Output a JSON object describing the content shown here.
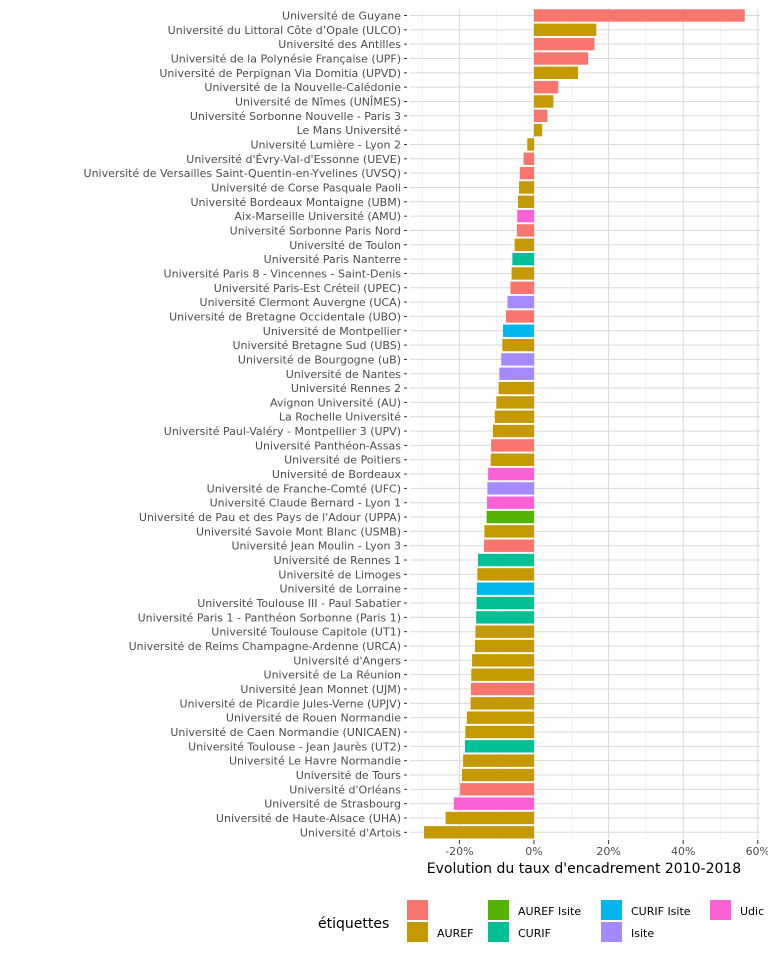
{
  "chart_data": {
    "type": "bar",
    "orientation": "horizontal",
    "xlabel": "Evolution du taux d'encadrement 2010-2018",
    "xlim": [
      -0.3,
      0.6
    ],
    "xticks": [
      "-20%",
      "0%",
      "20%",
      "40%",
      "60%"
    ],
    "xtick_values": [
      -0.2,
      0.0,
      0.2,
      0.4,
      0.6
    ],
    "grid": true,
    "legend_position": "bottom",
    "legend_title": "étiquettes",
    "colors": {
      "": "#F8766D",
      "AUREF": "#C49A00",
      "AUREF Isite": "#53B400",
      "CURIF": "#00C094",
      "CURIF Isite": "#00B6EB",
      "Isite": "#A58AFF",
      "Udice": "#FB61D7"
    },
    "legend": [
      {
        "key": "",
        "label": ""
      },
      {
        "key": "AUREF",
        "label": "AUREF"
      },
      {
        "key": "AUREF Isite",
        "label": "AUREF Isite"
      },
      {
        "key": "CURIF",
        "label": "CURIF"
      },
      {
        "key": "CURIF Isite",
        "label": "CURIF Isite"
      },
      {
        "key": "Isite",
        "label": "Isite"
      },
      {
        "key": "Udice",
        "label": "Udic"
      }
    ],
    "bars": [
      {
        "label": "Université de Guyane",
        "value": 0.565,
        "group": ""
      },
      {
        "label": "Université du Littoral Côte d’Opale (ULCO)",
        "value": 0.167,
        "group": "AUREF"
      },
      {
        "label": "Université des Antilles",
        "value": 0.162,
        "group": ""
      },
      {
        "label": "Université de la Polynésie Française (UPF)",
        "value": 0.145,
        "group": ""
      },
      {
        "label": "Université de Perpignan Via Domitia (UPVD)",
        "value": 0.118,
        "group": "AUREF"
      },
      {
        "label": "Université de la Nouvelle-Calédonie",
        "value": 0.065,
        "group": ""
      },
      {
        "label": "Université de Nîmes (UNÎMES)",
        "value": 0.052,
        "group": "AUREF"
      },
      {
        "label": "Université Sorbonne Nouvelle - Paris 3",
        "value": 0.036,
        "group": ""
      },
      {
        "label": "Le Mans Université",
        "value": 0.022,
        "group": "AUREF"
      },
      {
        "label": "Université Lumière - Lyon 2",
        "value": -0.018,
        "group": "AUREF"
      },
      {
        "label": "Université d'Évry-Val-d'Essonne (UEVE)",
        "value": -0.028,
        "group": ""
      },
      {
        "label": "Université de Versailles Saint-Quentin-en-Yvelines (UVSQ)",
        "value": -0.038,
        "group": ""
      },
      {
        "label": "Université de Corse Pasquale Paoli",
        "value": -0.04,
        "group": "AUREF"
      },
      {
        "label": "Université Bordeaux Montaigne (UBM)",
        "value": -0.043,
        "group": "AUREF"
      },
      {
        "label": "Aix-Marseille Université (AMU)",
        "value": -0.045,
        "group": "Udice"
      },
      {
        "label": "Université Sorbonne Paris Nord",
        "value": -0.046,
        "group": ""
      },
      {
        "label": "Université de Toulon",
        "value": -0.052,
        "group": "AUREF"
      },
      {
        "label": "Université Paris Nanterre",
        "value": -0.058,
        "group": "CURIF"
      },
      {
        "label": "Université Paris 8 - Vincennes - Saint-Denis",
        "value": -0.06,
        "group": "AUREF"
      },
      {
        "label": "Université Paris-Est Créteil (UPEC)",
        "value": -0.063,
        "group": ""
      },
      {
        "label": "Université Clermont Auvergne (UCA)",
        "value": -0.071,
        "group": "Isite"
      },
      {
        "label": "Université de Bretagne Occidentale (UBO)",
        "value": -0.075,
        "group": ""
      },
      {
        "label": "Université de Montpellier",
        "value": -0.083,
        "group": "CURIF Isite"
      },
      {
        "label": "Université Bretagne Sud (UBS)",
        "value": -0.085,
        "group": "AUREF"
      },
      {
        "label": "Université de Bourgogne (uB)",
        "value": -0.088,
        "group": "Isite"
      },
      {
        "label": "Université de Nantes",
        "value": -0.093,
        "group": "Isite"
      },
      {
        "label": "Université Rennes 2",
        "value": -0.095,
        "group": "AUREF"
      },
      {
        "label": "Avignon Université (AU)",
        "value": -0.101,
        "group": "AUREF"
      },
      {
        "label": "La Rochelle Université",
        "value": -0.105,
        "group": "AUREF"
      },
      {
        "label": "Université Paul-Valéry - Montpellier 3 (UPV)",
        "value": -0.11,
        "group": "AUREF"
      },
      {
        "label": "Université Panthéon-Assas",
        "value": -0.115,
        "group": ""
      },
      {
        "label": "Université de Poitiers",
        "value": -0.116,
        "group": "AUREF"
      },
      {
        "label": "Université de Bordeaux",
        "value": -0.123,
        "group": "Udice"
      },
      {
        "label": "Université de Franche-Comté (UFC)",
        "value": -0.125,
        "group": "Isite"
      },
      {
        "label": "Université Claude Bernard - Lyon 1",
        "value": -0.126,
        "group": "Udice"
      },
      {
        "label": "Université de Pau et des Pays de l'Adour (UPPA)",
        "value": -0.127,
        "group": "AUREF Isite"
      },
      {
        "label": "Université Savoie Mont Blanc (USMB)",
        "value": -0.133,
        "group": "AUREF"
      },
      {
        "label": "Université Jean Moulin - Lyon 3",
        "value": -0.134,
        "group": ""
      },
      {
        "label": "Université de Rennes 1",
        "value": -0.15,
        "group": "CURIF"
      },
      {
        "label": "Université de Limoges",
        "value": -0.152,
        "group": "AUREF"
      },
      {
        "label": "Université de Lorraine",
        "value": -0.153,
        "group": "CURIF Isite"
      },
      {
        "label": "Université Toulouse III - Paul Sabatier",
        "value": -0.154,
        "group": "CURIF"
      },
      {
        "label": "Université Paris 1 - Panthéon Sorbonne (Paris 1)",
        "value": -0.155,
        "group": "CURIF"
      },
      {
        "label": "Université Toulouse Capitole (UT1)",
        "value": -0.157,
        "group": "AUREF"
      },
      {
        "label": "Université de Reims Champagne-Ardenne (URCA)",
        "value": -0.158,
        "group": "AUREF"
      },
      {
        "label": "Université d'Angers",
        "value": -0.166,
        "group": "AUREF"
      },
      {
        "label": "Université de La Réunion",
        "value": -0.168,
        "group": "AUREF"
      },
      {
        "label": "Université Jean Monnet (UJM)",
        "value": -0.169,
        "group": ""
      },
      {
        "label": "Université de Picardie Jules-Verne (UPJV)",
        "value": -0.17,
        "group": "AUREF"
      },
      {
        "label": "Université de Rouen Normandie",
        "value": -0.18,
        "group": "AUREF"
      },
      {
        "label": "Université de Caen Normandie (UNICAEN)",
        "value": -0.184,
        "group": "AUREF"
      },
      {
        "label": "Université Toulouse - Jean Jaurès (UT2)",
        "value": -0.185,
        "group": "CURIF"
      },
      {
        "label": "Université Le Havre Normandie",
        "value": -0.19,
        "group": "AUREF"
      },
      {
        "label": "Université de Tours",
        "value": -0.193,
        "group": "AUREF"
      },
      {
        "label": "Université d'Orléans",
        "value": -0.198,
        "group": ""
      },
      {
        "label": "Université de Strasbourg",
        "value": -0.215,
        "group": "Udice"
      },
      {
        "label": "Université de Haute-Alsace (UHA)",
        "value": -0.237,
        "group": "AUREF"
      },
      {
        "label": "Université d'Artois",
        "value": -0.295,
        "group": "AUREF"
      }
    ]
  }
}
